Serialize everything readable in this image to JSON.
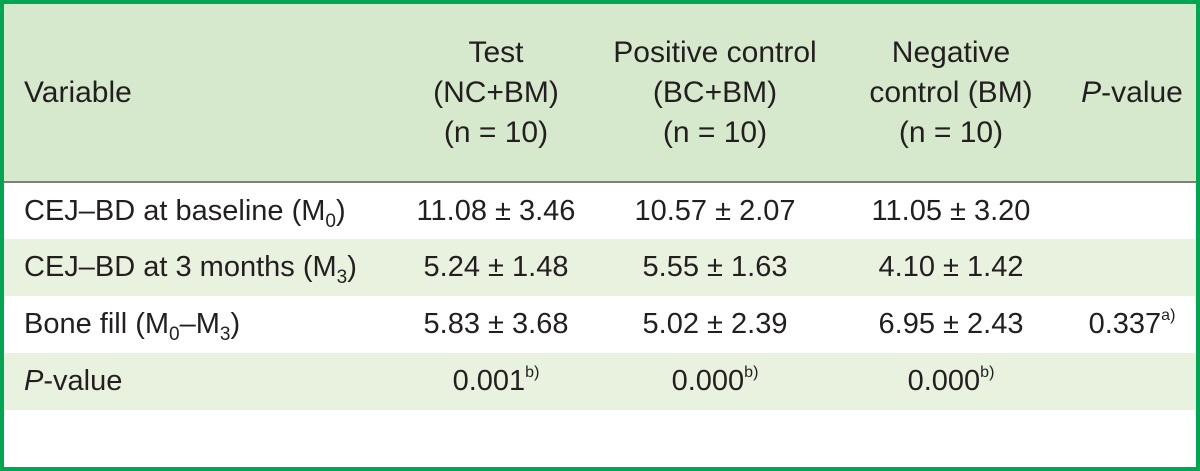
{
  "header": {
    "variable": "Variable",
    "test": [
      "Test",
      "(NC+BM)",
      "(n = 10)"
    ],
    "positive": [
      "Positive control",
      "(BC+BM)",
      "(n = 10)"
    ],
    "negative": [
      "Negative",
      "control (BM)",
      "(n = 10)"
    ],
    "pvalue_italic": "P",
    "pvalue_rest": "-value"
  },
  "rows": [
    {
      "label_main": "CEJ–BD at baseline (M",
      "label_sub": "0",
      "label_end": ")",
      "test": "11.08 ± 3.46",
      "positive": "10.57 ± 2.07",
      "negative": "11.05 ± 3.20",
      "pvalue": "",
      "pvalue_sup": ""
    },
    {
      "label_main": "CEJ–BD at 3 months (M",
      "label_sub": "3",
      "label_end": ")",
      "test": "5.24 ± 1.48",
      "positive": "5.55 ± 1.63",
      "negative": "4.10 ± 1.42",
      "pvalue": "",
      "pvalue_sup": ""
    },
    {
      "label_main": "Bone fill (M",
      "label_sub": "0",
      "label_mid": "–M",
      "label_sub2": "3",
      "label_end": ")",
      "test": "5.83 ± 3.68",
      "positive": "5.02 ± 2.39",
      "negative": "6.95 ± 2.43",
      "pvalue": "0.337",
      "pvalue_sup": "a)"
    }
  ],
  "pvalue_row": {
    "label_italic": "P",
    "label_rest": "-value",
    "test": "0.001",
    "test_sup": "b)",
    "positive": "0.000",
    "positive_sup": "b)",
    "negative": "0.000",
    "negative_sup": "b)"
  },
  "colors": {
    "frame_border": "#00a651",
    "header_bg": "#d7e9cc",
    "stripe_bg": "#e8f2df",
    "rule": "#7f7f7f"
  }
}
